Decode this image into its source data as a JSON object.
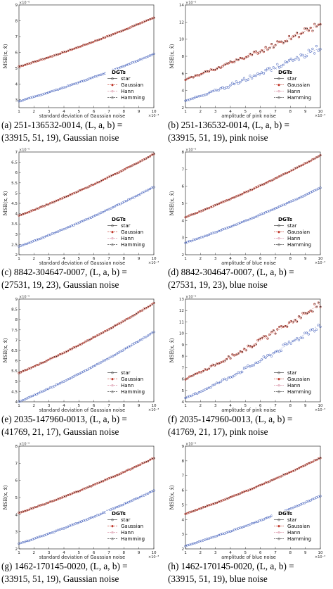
{
  "chart_data": [
    {
      "panel": "a",
      "type": "scatter",
      "caption_line1": "(a)  251-136532-0014,  (L, a, b)  =",
      "caption_line2": "(33915, 51, 19), Gaussian noise",
      "xlabel": "standard deviation of Gaussian noise",
      "x_exponent": "×10⁻³",
      "ylabel": "MSE(x, x̂)",
      "y_exponent": "×10⁻⁶",
      "xlim": [
        1,
        10
      ],
      "ylim": [
        2.5,
        9
      ],
      "yticks": [
        3,
        4,
        5,
        6,
        7,
        8,
        9
      ],
      "xticks": [
        1,
        2,
        3,
        4,
        5,
        6,
        7,
        8,
        9,
        10
      ],
      "legend_title": "DGTs",
      "legend": [
        "star",
        "Gaussian",
        "Hann",
        "Hamming"
      ],
      "series": [
        {
          "name": "star",
          "x": [
            1,
            10
          ],
          "y": [
            5.1,
            8.2
          ],
          "group": "upper"
        },
        {
          "name": "Gaussian",
          "x": [
            1,
            10
          ],
          "y": [
            5.1,
            8.2
          ],
          "group": "upper"
        },
        {
          "name": "Hann",
          "x": [
            1,
            10
          ],
          "y": [
            5.1,
            8.2
          ],
          "group": "upper"
        },
        {
          "name": "Hamming",
          "x": [
            1,
            10
          ],
          "y": [
            2.9,
            5.9
          ],
          "group": "lower"
        }
      ],
      "noisy": false
    },
    {
      "panel": "b",
      "type": "scatter",
      "caption_line1": "(b)  251-136532-0014,  (L, a, b)  =",
      "caption_line2": "(33915, 51, 19), pink noise",
      "xlabel": "amplitude of pink noise",
      "x_exponent": "×10⁻³",
      "ylabel": "MSE(x, x̂)",
      "y_exponent": "×10⁻⁶",
      "xlim": [
        1,
        10
      ],
      "ylim": [
        2,
        14
      ],
      "yticks": [
        2,
        4,
        6,
        8,
        10,
        12,
        14
      ],
      "xticks": [
        1,
        2,
        3,
        4,
        5,
        6,
        7,
        8,
        9,
        10
      ],
      "legend_title": "DGTs",
      "legend": [
        "star",
        "Gaussian",
        "Hann",
        "Hamming"
      ],
      "series": [
        {
          "name": "star",
          "x": [
            1,
            10
          ],
          "y": [
            5.3,
            11.8
          ],
          "group": "upper"
        },
        {
          "name": "Gaussian",
          "x": [
            1,
            10
          ],
          "y": [
            5.3,
            11.8
          ],
          "group": "upper"
        },
        {
          "name": "Hann",
          "x": [
            1,
            10
          ],
          "y": [
            2.8,
            9.0
          ],
          "group": "lower"
        },
        {
          "name": "Hamming",
          "x": [
            1,
            10
          ],
          "y": [
            2.8,
            9.0
          ],
          "group": "lower"
        }
      ],
      "noisy": true
    },
    {
      "panel": "c",
      "type": "scatter",
      "caption_line1": "(c)  8842-304647-0007,  (L, a, b)  =",
      "caption_line2": "(27531, 19, 23), Gaussian noise",
      "xlabel": "standard deviation of Gaussian noise",
      "x_exponent": "×10⁻³",
      "ylabel": "MSE(x, x̂)",
      "y_exponent": "×10⁻⁶",
      "xlim": [
        1,
        10
      ],
      "ylim": [
        2,
        7
      ],
      "yticks": [
        2,
        2.5,
        3,
        3.5,
        4,
        4.5,
        5,
        5.5,
        6,
        6.5,
        7
      ],
      "xticks": [
        1,
        2,
        3,
        4,
        5,
        6,
        7,
        8,
        9,
        10
      ],
      "legend_title": "DGTs",
      "legend": [
        "star",
        "Gaussian",
        "Hann",
        "Hamming"
      ],
      "series": [
        {
          "name": "star",
          "x": [
            1,
            10
          ],
          "y": [
            3.9,
            6.9
          ],
          "group": "upper"
        },
        {
          "name": "Gaussian",
          "x": [
            1,
            10
          ],
          "y": [
            3.9,
            6.9
          ],
          "group": "upper"
        },
        {
          "name": "Hann",
          "x": [
            1,
            10
          ],
          "y": [
            2.4,
            5.3
          ],
          "group": "lower"
        },
        {
          "name": "Hamming",
          "x": [
            1,
            10
          ],
          "y": [
            2.4,
            5.3
          ],
          "group": "lower"
        }
      ],
      "noisy": false
    },
    {
      "panel": "d",
      "type": "scatter",
      "caption_line1": "(d)  8842-304647-0007,  (L, a, b)  =",
      "caption_line2": "(27531, 19, 23), blue noise",
      "xlabel": "amplitude of blue noise",
      "x_exponent": "×10⁻³",
      "ylabel": "MSE(x, x̂)",
      "y_exponent": "×10⁻⁶",
      "xlim": [
        1,
        10
      ],
      "ylim": [
        2,
        8
      ],
      "yticks": [
        2,
        3,
        4,
        5,
        6,
        7,
        8
      ],
      "xticks": [
        1,
        2,
        3,
        4,
        5,
        6,
        7,
        8,
        9,
        10
      ],
      "legend_title": "DGTs",
      "legend": [
        "star",
        "Gaussian",
        "Hann",
        "Hamming"
      ],
      "series": [
        {
          "name": "star",
          "x": [
            1,
            10
          ],
          "y": [
            4.2,
            7.8
          ],
          "group": "upper"
        },
        {
          "name": "Gaussian",
          "x": [
            1,
            10
          ],
          "y": [
            4.2,
            7.8
          ],
          "group": "upper"
        },
        {
          "name": "Hann",
          "x": [
            1,
            10
          ],
          "y": [
            2.7,
            5.9
          ],
          "group": "lower"
        },
        {
          "name": "Hamming",
          "x": [
            1,
            10
          ],
          "y": [
            2.7,
            5.9
          ],
          "group": "lower"
        }
      ],
      "noisy": false
    },
    {
      "panel": "e",
      "type": "scatter",
      "caption_line1": "(e)  2035-147960-0013,  (L, a, b)  =",
      "caption_line2": "(41769, 21, 17), Gaussian noise",
      "xlabel": "standard deviation of Gaussian noise",
      "x_exponent": "×10⁻³",
      "ylabel": "MSE(x, x̂)",
      "y_exponent": "×10⁻⁶",
      "xlim": [
        1,
        10
      ],
      "ylim": [
        4,
        9
      ],
      "yticks": [
        4,
        4.5,
        5,
        5.5,
        6,
        6.5,
        7,
        7.5,
        8,
        8.5,
        9
      ],
      "xticks": [
        1,
        2,
        3,
        4,
        5,
        6,
        7,
        8,
        9,
        10
      ],
      "legend_title": "",
      "legend": [
        "star",
        "Gaussian",
        "Hann",
        "Hamming"
      ],
      "series": [
        {
          "name": "star",
          "x": [
            1,
            10
          ],
          "y": [
            5.4,
            8.8
          ],
          "group": "upper"
        },
        {
          "name": "Gaussian",
          "x": [
            1,
            10
          ],
          "y": [
            5.4,
            8.8
          ],
          "group": "upper"
        },
        {
          "name": "Hann",
          "x": [
            1,
            10
          ],
          "y": [
            4.0,
            7.4
          ],
          "group": "lower"
        },
        {
          "name": "Hamming",
          "x": [
            1,
            10
          ],
          "y": [
            4.0,
            7.4
          ],
          "group": "lower"
        }
      ],
      "noisy": false
    },
    {
      "panel": "f",
      "type": "scatter",
      "caption_line1": "(f)  2035-147960-0013,  (L, a, b)  =",
      "caption_line2": "(41769, 21, 17), pink noise",
      "xlabel": "amplitude of pink noise",
      "x_exponent": "×10⁻³",
      "ylabel": "MSE(x, x̂)",
      "y_exponent": "×10⁻⁶",
      "xlim": [
        1,
        10
      ],
      "ylim": [
        4,
        13
      ],
      "yticks": [
        4,
        5,
        6,
        7,
        8,
        9,
        10,
        11,
        12,
        13
      ],
      "xticks": [
        1,
        2,
        3,
        4,
        5,
        6,
        7,
        8,
        9,
        10
      ],
      "legend_title": "",
      "legend": [
        "star",
        "Gaussian",
        "Hann",
        "Hamming"
      ],
      "series": [
        {
          "name": "star",
          "x": [
            1,
            10
          ],
          "y": [
            6.0,
            12.6
          ],
          "group": "upper"
        },
        {
          "name": "Gaussian",
          "x": [
            1,
            10
          ],
          "y": [
            6.0,
            12.6
          ],
          "group": "upper"
        },
        {
          "name": "Hann",
          "x": [
            1,
            10
          ],
          "y": [
            4.3,
            10.8
          ],
          "group": "lower"
        },
        {
          "name": "Hamming",
          "x": [
            1,
            10
          ],
          "y": [
            4.3,
            10.8
          ],
          "group": "lower"
        }
      ],
      "noisy": true
    },
    {
      "panel": "g",
      "type": "scatter",
      "caption_line1": "(g)  1462-170145-0020,  (L, a, b)  =",
      "caption_line2": "(33915, 51, 19), Gaussian noise",
      "xlabel": "standard deviation of Gaussian noise",
      "x_exponent": "×10⁻³",
      "ylabel": "MSE(x, x̂)",
      "y_exponent": "×10⁻⁶",
      "xlim": [
        1,
        10
      ],
      "ylim": [
        2,
        8
      ],
      "yticks": [
        2,
        3,
        4,
        5,
        6,
        7,
        8
      ],
      "xticks": [
        1,
        2,
        3,
        4,
        5,
        6,
        7,
        8,
        9,
        10
      ],
      "legend_title": "DGTs",
      "legend": [
        "star",
        "Gaussian",
        "Hann",
        "Hamming"
      ],
      "series": [
        {
          "name": "star",
          "x": [
            1,
            10
          ],
          "y": [
            4.1,
            7.3
          ],
          "group": "upper"
        },
        {
          "name": "Gaussian",
          "x": [
            1,
            10
          ],
          "y": [
            4.1,
            7.3
          ],
          "group": "upper"
        },
        {
          "name": "Hann",
          "x": [
            1,
            10
          ],
          "y": [
            2.3,
            5.4
          ],
          "group": "lower"
        },
        {
          "name": "Hamming",
          "x": [
            1,
            10
          ],
          "y": [
            2.3,
            5.4
          ],
          "group": "lower"
        }
      ],
      "noisy": false
    },
    {
      "panel": "h",
      "type": "scatter",
      "caption_line1": "(h)  1462-170145-0020,  (L, a, b)  =",
      "caption_line2": "(33915, 51, 19), blue noise",
      "xlabel": "amplitude of blue noise",
      "x_exponent": "×10⁻³",
      "ylabel": "MSE(x, x̂)",
      "y_exponent": "×10⁻⁶",
      "xlim": [
        1,
        10
      ],
      "ylim": [
        2,
        9
      ],
      "yticks": [
        2,
        3,
        4,
        5,
        6,
        7,
        8,
        9
      ],
      "xticks": [
        1,
        2,
        3,
        4,
        5,
        6,
        7,
        8,
        9,
        10
      ],
      "legend_title": "DGTs",
      "legend": [
        "star",
        "Gaussian",
        "Hann",
        "Hamming"
      ],
      "series": [
        {
          "name": "star",
          "x": [
            1,
            10
          ],
          "y": [
            4.4,
            8.2
          ],
          "group": "upper"
        },
        {
          "name": "Gaussian",
          "x": [
            1,
            10
          ],
          "y": [
            4.4,
            8.2
          ],
          "group": "upper"
        },
        {
          "name": "Hann",
          "x": [
            1,
            10
          ],
          "y": [
            2.2,
            5.6
          ],
          "group": "lower"
        },
        {
          "name": "Hamming",
          "x": [
            1,
            10
          ],
          "y": [
            2.2,
            5.6
          ],
          "group": "lower"
        }
      ],
      "noisy": false
    }
  ],
  "colors": {
    "upper": "#c0392b",
    "lower": "#2f4fb5",
    "axis": "#333333",
    "grid": "#f0f0f0"
  }
}
